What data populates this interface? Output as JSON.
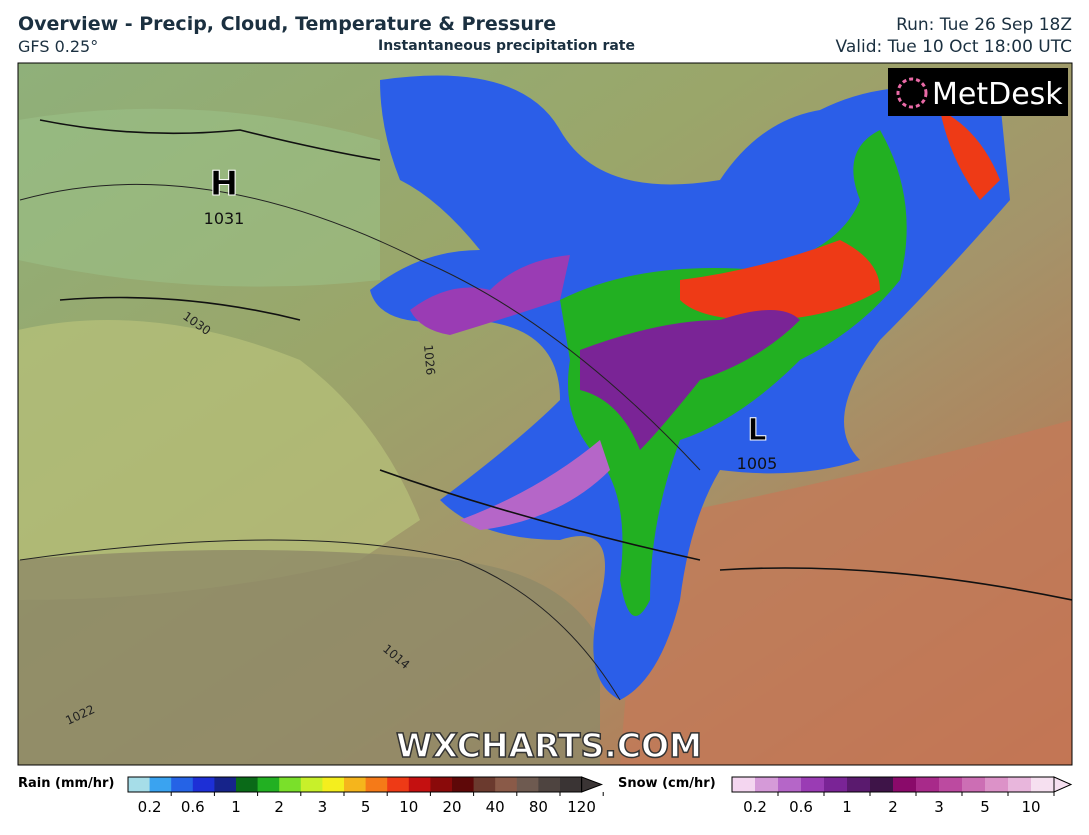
{
  "header": {
    "title": "Overview - Precip, Cloud, Temperature & Pressure",
    "model": "GFS 0.25°",
    "subtitle": "Instantaneous precipitation rate",
    "run": "Run: Tue 26 Sep 18Z",
    "valid": "Valid: Tue 10 Oct 18:00 UTC"
  },
  "map": {
    "logo": "MetDesk",
    "watermark": "WXCHARTS.COM",
    "pressure_centers": [
      {
        "label": "H",
        "value": 1031
      },
      {
        "label": "L",
        "value": 1005
      }
    ],
    "isobar_labels": [
      1030,
      1026,
      1014,
      1022
    ]
  },
  "legend": {
    "rain": {
      "label": "Rain (mm/hr)",
      "colors": [
        "#a6dde8",
        "#3aa3f0",
        "#2563e6",
        "#1d2fd6",
        "#16238a",
        "#0a6a18",
        "#22b022",
        "#7ae02a",
        "#c8f02a",
        "#f4ee1e",
        "#f5b51c",
        "#f57a18",
        "#ee3a16",
        "#c41010",
        "#8a0a0a",
        "#5e0808",
        "#6b3a2e",
        "#8a5a48",
        "#6e5a50",
        "#4e4440",
        "#3a3434"
      ],
      "ticks": [
        0.2,
        0.6,
        1,
        2,
        3,
        5,
        10,
        20,
        40,
        80,
        120
      ]
    },
    "snow": {
      "label": "Snow (cm/hr)",
      "colors": [
        "#f4d6f0",
        "#d59ad8",
        "#b566c8",
        "#9a3cb4",
        "#7a2496",
        "#5a1a6e",
        "#3e1448",
        "#8a0a6a",
        "#a82a8a",
        "#bc4aa0",
        "#cc6eb4",
        "#dc92c8",
        "#e8b6dc",
        "#f6e0f0"
      ],
      "ticks": [
        0.2,
        0.6,
        1,
        2,
        3,
        5,
        10
      ]
    }
  }
}
